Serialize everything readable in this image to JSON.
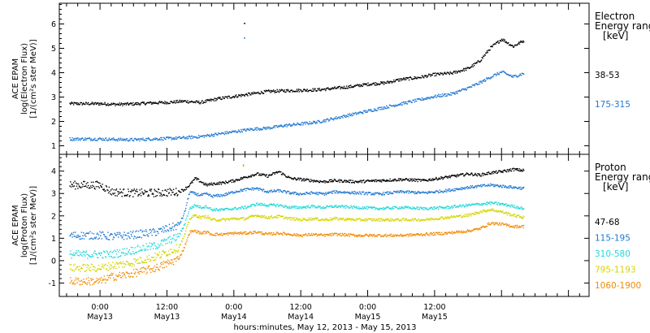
{
  "chart_data": [
    {
      "type": "scatter",
      "panel": "electron",
      "ylabel": [
        "ACE EPAM",
        "log(Electron Flux)",
        "[1/(cm²s ster MeV)]"
      ],
      "yticks": [
        1,
        2,
        3,
        4,
        5,
        6
      ],
      "ylim": [
        0.65,
        6.85
      ],
      "legend": {
        "title": [
          "Electron",
          "Energy ranges",
          "[keV]"
        ],
        "placement": "right"
      },
      "series": [
        {
          "name": "38-53",
          "color": "#000000",
          "x": [
            0,
            3,
            6,
            9,
            12,
            15,
            18,
            21,
            24,
            27,
            30,
            33,
            36,
            39,
            42,
            45,
            48,
            51,
            54,
            57,
            60,
            63,
            66,
            68,
            70,
            72,
            74,
            76
          ],
          "y": [
            2.75,
            2.72,
            2.74,
            2.78,
            2.8,
            2.85,
            2.8,
            2.95,
            3.05,
            3.15,
            3.25,
            3.28,
            3.3,
            3.32,
            3.38,
            3.45,
            3.55,
            3.6,
            3.75,
            3.82,
            3.95,
            4.0,
            4.2,
            4.5,
            5.05,
            5.4,
            5.1,
            5.35
          ]
        },
        {
          "name": "175-315",
          "color": "#1f78d2",
          "x": [
            0,
            3,
            6,
            9,
            12,
            15,
            18,
            21,
            24,
            27,
            30,
            33,
            36,
            39,
            42,
            45,
            48,
            51,
            54,
            57,
            60,
            63,
            66,
            68,
            70,
            72,
            74,
            76
          ],
          "y": [
            1.3,
            1.28,
            1.27,
            1.3,
            1.32,
            1.35,
            1.4,
            1.5,
            1.6,
            1.7,
            1.75,
            1.85,
            1.92,
            2.0,
            2.15,
            2.3,
            2.45,
            2.6,
            2.75,
            2.9,
            3.05,
            3.15,
            3.4,
            3.6,
            3.85,
            4.05,
            3.85,
            4.0
          ]
        }
      ],
      "outliers": [
        {
          "x": 25.8,
          "y": 6.05,
          "color": "#000000"
        },
        {
          "x": 25.8,
          "y": 5.45,
          "color": "#1f78d2"
        }
      ]
    },
    {
      "type": "scatter",
      "panel": "proton",
      "ylabel": [
        "ACE EPAM",
        "log(Proton Flux)",
        "[1/(cm²s ster MeV)]"
      ],
      "yticks": [
        -1,
        0,
        1,
        2,
        3,
        4
      ],
      "ylim": [
        -1.6,
        4.75
      ],
      "legend": {
        "title": [
          "Proton",
          "Energy ranges",
          "[keV]"
        ],
        "placement": "right"
      },
      "series": [
        {
          "name": "47-68",
          "color": "#000000",
          "x": [
            0,
            2,
            5,
            10,
            14,
            15,
            16,
            17,
            18,
            19,
            20,
            22,
            24,
            26,
            28,
            30,
            32,
            34,
            36,
            38,
            40,
            42,
            46,
            50,
            54,
            58,
            62,
            66,
            68,
            70,
            72,
            74,
            76
          ],
          "y": [
            3.4,
            3.1,
            3.05,
            3.05,
            3.1,
            3.2,
            3.4,
            3.7,
            3.55,
            3.4,
            3.45,
            3.5,
            3.6,
            3.75,
            3.9,
            3.8,
            4.0,
            3.7,
            3.65,
            3.6,
            3.55,
            3.6,
            3.55,
            3.6,
            3.65,
            3.6,
            3.75,
            3.9,
            3.85,
            3.95,
            4.0,
            4.1,
            4.05
          ]
        },
        {
          "name": "115-195",
          "color": "#1f78d2",
          "x": [
            0,
            2,
            5,
            10,
            14,
            15,
            16,
            17,
            18,
            19,
            20,
            22,
            24,
            26,
            28,
            30,
            32,
            34,
            36,
            38,
            40,
            42,
            46,
            50,
            54,
            58,
            62,
            66,
            68,
            70,
            72,
            74,
            76
          ],
          "y": [
            1.15,
            1.1,
            1.15,
            1.3,
            1.6,
            2.1,
            3.1,
            3.0,
            2.95,
            3.0,
            2.9,
            2.95,
            3.1,
            3.2,
            3.25,
            3.1,
            3.15,
            3.05,
            3.0,
            3.05,
            3.0,
            3.1,
            3.05,
            3.0,
            3.1,
            3.05,
            3.15,
            3.3,
            3.35,
            3.4,
            3.35,
            3.3,
            3.25
          ]
        },
        {
          "name": "310-580",
          "color": "#22d8d8",
          "x": [
            0,
            2,
            5,
            10,
            14,
            15,
            16,
            17,
            18,
            19,
            20,
            22,
            24,
            26,
            28,
            30,
            32,
            34,
            36,
            38,
            40,
            42,
            46,
            50,
            54,
            58,
            62,
            66,
            68,
            70,
            72,
            74,
            76
          ],
          "y": [
            0.3,
            0.3,
            0.45,
            0.7,
            1.1,
            1.6,
            2.35,
            2.5,
            2.4,
            2.45,
            2.3,
            2.3,
            2.35,
            2.4,
            2.55,
            2.5,
            2.5,
            2.4,
            2.4,
            2.45,
            2.4,
            2.45,
            2.4,
            2.35,
            2.4,
            2.35,
            2.4,
            2.5,
            2.55,
            2.6,
            2.55,
            2.45,
            2.35
          ]
        },
        {
          "name": "795-1193",
          "color": "#d4d400",
          "x": [
            0,
            2,
            5,
            10,
            14,
            15,
            16,
            17,
            18,
            19,
            20,
            22,
            24,
            26,
            28,
            30,
            32,
            34,
            36,
            38,
            40,
            42,
            46,
            50,
            54,
            58,
            62,
            66,
            68,
            70,
            72,
            74,
            76
          ],
          "y": [
            -0.3,
            -0.2,
            -0.1,
            0.2,
            0.6,
            1.1,
            1.9,
            2.05,
            1.95,
            2.0,
            1.85,
            1.85,
            1.9,
            1.9,
            2.05,
            1.95,
            2.0,
            1.9,
            1.85,
            1.9,
            1.85,
            1.9,
            1.85,
            1.85,
            1.85,
            1.85,
            1.95,
            2.05,
            2.2,
            2.3,
            2.2,
            2.05,
            1.95
          ]
        },
        {
          "name": "1060-1900",
          "color": "#f28a00",
          "x": [
            0,
            2,
            5,
            10,
            14,
            15,
            16,
            17,
            18,
            19,
            20,
            22,
            24,
            26,
            28,
            30,
            32,
            34,
            36,
            38,
            40,
            42,
            46,
            50,
            54,
            58,
            62,
            66,
            68,
            70,
            72,
            74,
            76
          ],
          "y": [
            -0.9,
            -0.7,
            -0.6,
            -0.3,
            0.1,
            0.6,
            1.3,
            1.35,
            1.25,
            1.3,
            1.2,
            1.2,
            1.25,
            1.25,
            1.3,
            1.2,
            1.25,
            1.2,
            1.15,
            1.2,
            1.15,
            1.2,
            1.15,
            1.15,
            1.15,
            1.2,
            1.25,
            1.35,
            1.45,
            1.7,
            1.65,
            1.55,
            1.55
          ]
        }
      ],
      "outliers": [
        {
          "x": 25.6,
          "y": 4.3,
          "color": "#f28a00"
        },
        {
          "x": 25.6,
          "y": 4.25,
          "color": "#d4d400"
        }
      ]
    }
  ],
  "x_axis": {
    "xlim": [
      -7.3,
      87.7
    ],
    "ticks": [
      {
        "x": 0,
        "line1": "0:00",
        "line2": "May13"
      },
      {
        "x": 12,
        "line1": "12:00",
        "line2": "May13"
      },
      {
        "x": 24,
        "line1": "0:00",
        "line2": "May14"
      },
      {
        "x": 36,
        "line1": "12:00",
        "line2": "May14"
      },
      {
        "x": 48,
        "line1": "0:00",
        "line2": "May15"
      },
      {
        "x": 60,
        "line1": "12:00",
        "line2": "May15"
      }
    ],
    "title": "hours:minutes, May 12, 2013 - May 15, 2013"
  }
}
